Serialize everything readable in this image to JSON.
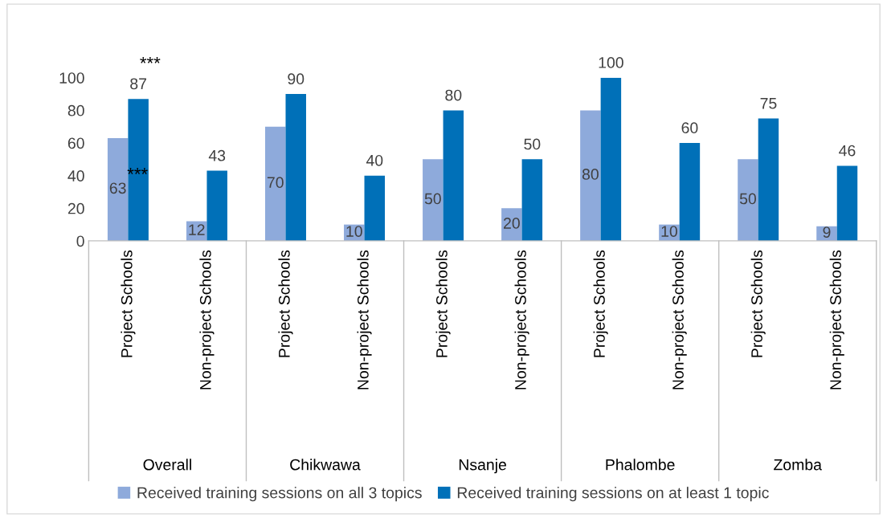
{
  "chart_data": {
    "type": "bar",
    "categories": [
      "Project Schools",
      "Non-project Schools",
      "Project Schools",
      "Non-project Schools",
      "Project Schools",
      "Non-project Schools",
      "Project Schools",
      "Non-project Schools",
      "Project Schools",
      "Non-project Schools"
    ],
    "series": [
      {
        "name": "Received training sessions on all 3 topics",
        "color": "#8eaadb",
        "values": [
          63,
          12,
          70,
          10,
          50,
          20,
          80,
          10,
          50,
          9
        ]
      },
      {
        "name": "Received training sessions on at least 1 topic",
        "color": "#0070b8",
        "values": [
          87,
          43,
          90,
          40,
          80,
          50,
          100,
          60,
          75,
          46
        ]
      }
    ],
    "annotations": [
      "***",
      "***",
      "Overall",
      "Chikwawa",
      "Nsanje",
      "Phalombe",
      "Zomba"
    ],
    "ylim": [
      0,
      100
    ],
    "yticks": [
      0,
      20,
      40,
      60,
      80,
      100
    ],
    "data_labels": true,
    "legend": "bottom"
  }
}
